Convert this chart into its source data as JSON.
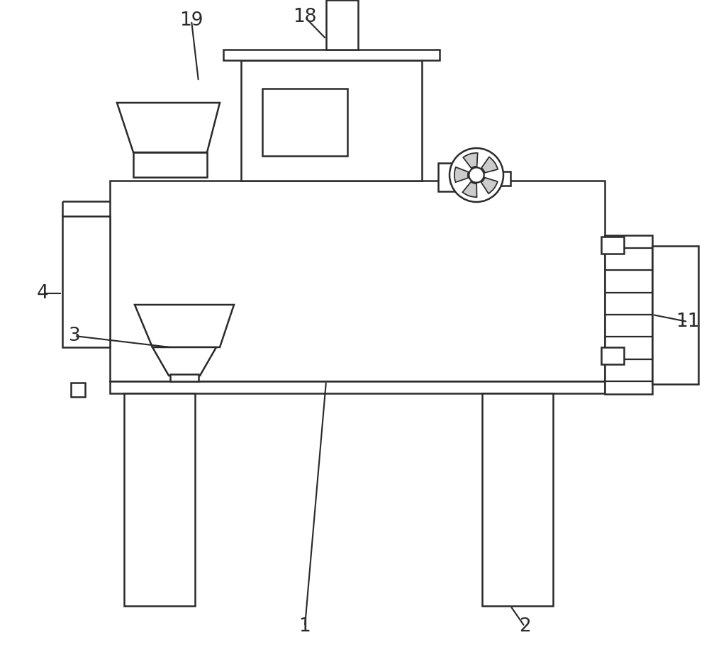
{
  "bg_color": "#ffffff",
  "line_color": "#2a2a2a",
  "line_width": 1.8,
  "fig_width": 10.0,
  "fig_height": 9.44,
  "label_fontsize": 19
}
